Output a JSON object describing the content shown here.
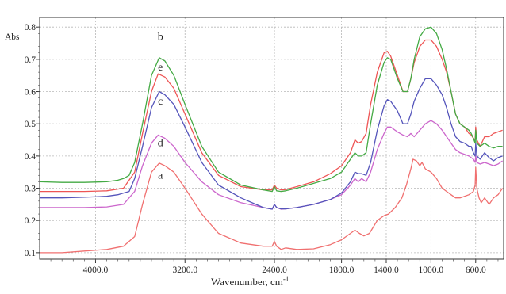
{
  "chart_data": {
    "type": "line",
    "xlabel": "Wavenumber, cm",
    "xlabel_superscript": "-1",
    "ylabel": "Abs",
    "xlim": [
      4500,
      350
    ],
    "ylim": [
      0.08,
      0.83
    ],
    "grid": true,
    "x_ticks": [
      4000,
      3200,
      2400,
      1800,
      1400,
      1000,
      600
    ],
    "x_tick_labels": [
      "4000.0",
      "3200.0",
      "2400.0",
      "1800.0",
      "1400.0",
      "1000.0",
      "600.0"
    ],
    "y_ticks": [
      0.1,
      0.2,
      0.3,
      0.4,
      0.5,
      0.6,
      0.7,
      0.8
    ],
    "y_tick_labels": [
      "0.1",
      "0.2",
      "0.3",
      "0.4",
      "0.5",
      "0.6",
      "0.7",
      "0.8"
    ],
    "series": [
      {
        "name": "a",
        "color": "#f07070",
        "x": [
          4500,
          4300,
          4100,
          3900,
          3750,
          3650,
          3580,
          3500,
          3430,
          3380,
          3300,
          3200,
          3050,
          2900,
          2700,
          2500,
          2420,
          2400,
          2380,
          2340,
          2300,
          2200,
          2050,
          1900,
          1800,
          1720,
          1680,
          1640,
          1600,
          1550,
          1480,
          1420,
          1380,
          1320,
          1260,
          1220,
          1180,
          1160,
          1130,
          1100,
          1080,
          1050,
          1000,
          950,
          900,
          860,
          820,
          780,
          740,
          700,
          660,
          640,
          620,
          605,
          600,
          590,
          570,
          550,
          520,
          480,
          440,
          400,
          360
        ],
        "y": [
          0.1,
          0.1,
          0.105,
          0.11,
          0.12,
          0.15,
          0.25,
          0.35,
          0.378,
          0.37,
          0.35,
          0.3,
          0.22,
          0.16,
          0.13,
          0.12,
          0.12,
          0.135,
          0.12,
          0.11,
          0.115,
          0.11,
          0.112,
          0.125,
          0.14,
          0.16,
          0.17,
          0.16,
          0.152,
          0.16,
          0.2,
          0.215,
          0.22,
          0.24,
          0.27,
          0.31,
          0.36,
          0.39,
          0.385,
          0.37,
          0.38,
          0.36,
          0.35,
          0.33,
          0.3,
          0.29,
          0.28,
          0.27,
          0.27,
          0.275,
          0.28,
          0.285,
          0.29,
          0.31,
          0.365,
          0.3,
          0.27,
          0.255,
          0.27,
          0.25,
          0.27,
          0.28,
          0.3
        ]
      },
      {
        "name": "d",
        "color": "#cc66cc",
        "x": [
          4500,
          4300,
          4100,
          3900,
          3750,
          3650,
          3580,
          3500,
          3440,
          3380,
          3300,
          3200,
          3050,
          2900,
          2700,
          2500,
          2420,
          2400,
          2380,
          2340,
          2300,
          2200,
          2050,
          1900,
          1800,
          1720,
          1680,
          1650,
          1620,
          1580,
          1540,
          1480,
          1420,
          1390,
          1360,
          1300,
          1250,
          1210,
          1180,
          1150,
          1100,
          1050,
          1000,
          950,
          900,
          860,
          820,
          780,
          740,
          700,
          660,
          640,
          620,
          605,
          600,
          590,
          560,
          520,
          480,
          440,
          400,
          360
        ],
        "y": [
          0.24,
          0.24,
          0.24,
          0.242,
          0.25,
          0.29,
          0.37,
          0.44,
          0.465,
          0.455,
          0.43,
          0.38,
          0.32,
          0.28,
          0.255,
          0.24,
          0.235,
          0.25,
          0.24,
          0.235,
          0.236,
          0.24,
          0.25,
          0.265,
          0.28,
          0.31,
          0.33,
          0.32,
          0.33,
          0.32,
          0.35,
          0.42,
          0.47,
          0.49,
          0.49,
          0.475,
          0.465,
          0.46,
          0.47,
          0.46,
          0.48,
          0.5,
          0.51,
          0.5,
          0.48,
          0.46,
          0.44,
          0.42,
          0.41,
          0.405,
          0.4,
          0.395,
          0.39,
          0.38,
          0.4,
          0.38,
          0.375,
          0.38,
          0.375,
          0.37,
          0.375,
          0.385
        ]
      },
      {
        "name": "c",
        "color": "#5555bb",
        "x": [
          4500,
          4300,
          4100,
          3900,
          3800,
          3750,
          3700,
          3650,
          3580,
          3500,
          3430,
          3380,
          3300,
          3200,
          3050,
          2900,
          2700,
          2500,
          2420,
          2400,
          2380,
          2340,
          2300,
          2200,
          2050,
          1900,
          1800,
          1720,
          1680,
          1650,
          1620,
          1580,
          1540,
          1480,
          1420,
          1390,
          1360,
          1300,
          1250,
          1210,
          1180,
          1150,
          1100,
          1050,
          1000,
          950,
          900,
          860,
          820,
          780,
          740,
          700,
          660,
          640,
          620,
          605,
          600,
          590,
          560,
          520,
          480,
          440,
          400,
          360
        ],
        "y": [
          0.27,
          0.27,
          0.272,
          0.275,
          0.28,
          0.285,
          0.29,
          0.33,
          0.43,
          0.55,
          0.6,
          0.59,
          0.56,
          0.49,
          0.38,
          0.31,
          0.27,
          0.24,
          0.235,
          0.25,
          0.24,
          0.236,
          0.236,
          0.24,
          0.25,
          0.265,
          0.285,
          0.32,
          0.35,
          0.345,
          0.345,
          0.34,
          0.38,
          0.48,
          0.555,
          0.575,
          0.57,
          0.54,
          0.5,
          0.5,
          0.53,
          0.57,
          0.61,
          0.64,
          0.64,
          0.62,
          0.59,
          0.55,
          0.5,
          0.46,
          0.445,
          0.44,
          0.43,
          0.43,
          0.41,
          0.4,
          0.44,
          0.4,
          0.39,
          0.41,
          0.395,
          0.385,
          0.395,
          0.4
        ]
      },
      {
        "name": "e",
        "color": "#ee5555",
        "x": [
          4500,
          4300,
          4100,
          3900,
          3750,
          3650,
          3580,
          3500,
          3440,
          3380,
          3300,
          3200,
          3050,
          2900,
          2700,
          2500,
          2420,
          2400,
          2380,
          2340,
          2300,
          2200,
          2050,
          1900,
          1800,
          1720,
          1680,
          1650,
          1620,
          1580,
          1540,
          1480,
          1420,
          1390,
          1360,
          1300,
          1250,
          1210,
          1180,
          1150,
          1100,
          1050,
          1000,
          950,
          900,
          860,
          820,
          780,
          740,
          700,
          660,
          640,
          620,
          605,
          600,
          590,
          560,
          520,
          480,
          440,
          400,
          360
        ],
        "y": [
          0.29,
          0.29,
          0.29,
          0.292,
          0.3,
          0.35,
          0.47,
          0.6,
          0.655,
          0.645,
          0.61,
          0.53,
          0.41,
          0.34,
          0.305,
          0.295,
          0.295,
          0.31,
          0.3,
          0.295,
          0.296,
          0.305,
          0.32,
          0.345,
          0.37,
          0.41,
          0.45,
          0.44,
          0.445,
          0.47,
          0.56,
          0.66,
          0.72,
          0.725,
          0.71,
          0.65,
          0.6,
          0.6,
          0.64,
          0.69,
          0.74,
          0.76,
          0.76,
          0.74,
          0.7,
          0.66,
          0.6,
          0.53,
          0.5,
          0.49,
          0.47,
          0.465,
          0.455,
          0.45,
          0.49,
          0.45,
          0.43,
          0.46,
          0.46,
          0.47,
          0.475,
          0.48
        ]
      },
      {
        "name": "b",
        "color": "#44aa44",
        "x": [
          4500,
          4300,
          4100,
          3900,
          3800,
          3750,
          3700,
          3650,
          3580,
          3500,
          3430,
          3380,
          3300,
          3200,
          3050,
          2900,
          2700,
          2500,
          2420,
          2400,
          2380,
          2340,
          2300,
          2200,
          2050,
          1900,
          1800,
          1720,
          1680,
          1650,
          1620,
          1580,
          1540,
          1480,
          1420,
          1390,
          1360,
          1300,
          1250,
          1210,
          1180,
          1150,
          1100,
          1050,
          1000,
          950,
          900,
          860,
          820,
          780,
          740,
          700,
          660,
          640,
          620,
          605,
          600,
          590,
          560,
          520,
          480,
          440,
          400,
          360
        ],
        "y": [
          0.32,
          0.318,
          0.318,
          0.32,
          0.325,
          0.33,
          0.34,
          0.38,
          0.5,
          0.65,
          0.705,
          0.695,
          0.65,
          0.56,
          0.43,
          0.35,
          0.31,
          0.295,
          0.29,
          0.305,
          0.292,
          0.29,
          0.292,
          0.3,
          0.315,
          0.33,
          0.35,
          0.39,
          0.41,
          0.4,
          0.4,
          0.41,
          0.5,
          0.62,
          0.69,
          0.705,
          0.7,
          0.64,
          0.6,
          0.6,
          0.64,
          0.7,
          0.77,
          0.795,
          0.8,
          0.78,
          0.73,
          0.67,
          0.6,
          0.53,
          0.5,
          0.49,
          0.48,
          0.47,
          0.455,
          0.44,
          0.48,
          0.44,
          0.43,
          0.44,
          0.43,
          0.425,
          0.43,
          0.43
        ]
      }
    ],
    "curve_labels": [
      {
        "text": "b",
        "x": 3420,
        "y": 0.76
      },
      {
        "text": "e",
        "x": 3420,
        "y": 0.665
      },
      {
        "text": "c",
        "x": 3420,
        "y": 0.56
      },
      {
        "text": "d",
        "x": 3420,
        "y": 0.43
      },
      {
        "text": "a",
        "x": 3420,
        "y": 0.33
      }
    ]
  }
}
